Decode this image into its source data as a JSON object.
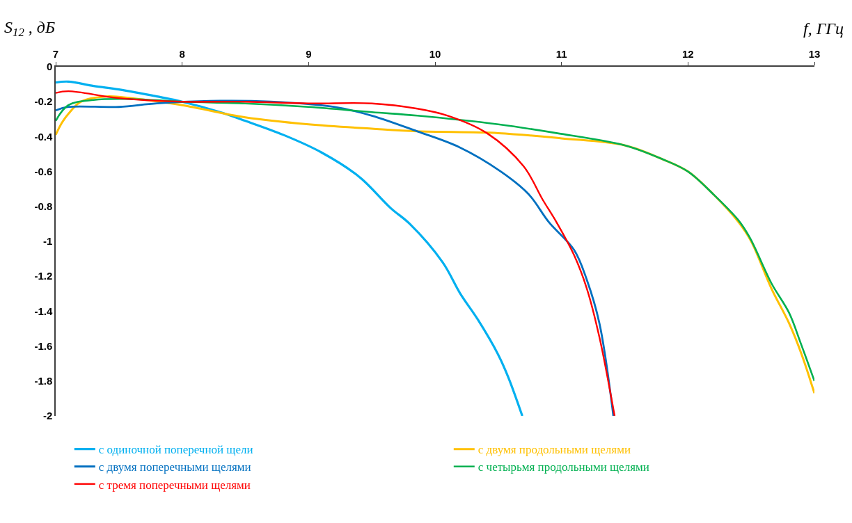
{
  "chart_data": {
    "type": "line",
    "xlabel": "f, ГГц",
    "ylabel": "S$_{12}$ , дБ",
    "xlim": [
      7,
      13
    ],
    "xticks": [
      7,
      8,
      9,
      10,
      11,
      12,
      13
    ],
    "ylim": [
      -2,
      0
    ],
    "yticks": [
      0,
      -0.2,
      -0.4,
      -0.6,
      -0.8,
      -1,
      -1.2,
      -1.4,
      -1.6,
      -1.8,
      -2
    ],
    "grid": false,
    "legend": "bottom",
    "marker": "none",
    "line_style": "solid",
    "series": [
      {
        "name": "с одиночной поперечной щели",
        "color": "#00b0f0",
        "x": [
          7,
          7.1,
          7.3,
          7.5,
          7.8,
          8,
          8.3,
          8.5,
          8.8,
          9.1,
          9.4,
          9.65,
          9.8,
          10.06,
          10.2,
          10.34,
          10.5,
          10.58,
          10.69
        ],
        "values": [
          -0.09,
          -0.085,
          -0.11,
          -0.13,
          -0.17,
          -0.2,
          -0.26,
          -0.31,
          -0.39,
          -0.49,
          -0.63,
          -0.81,
          -0.9,
          -1.12,
          -1.3,
          -1.45,
          -1.65,
          -1.78,
          -2
        ]
      },
      {
        "name": "с двумя продольными щелями",
        "color": "#ffc000",
        "x": [
          7,
          7.05,
          7.1,
          7.2,
          7.4,
          7.6,
          8,
          8.5,
          9,
          9.5,
          9.86,
          10.5,
          11,
          11.5,
          11.8,
          12,
          12.2,
          12.4,
          12.5,
          12.66,
          12.8,
          12.9,
          13
        ],
        "values": [
          -0.39,
          -0.32,
          -0.27,
          -0.2,
          -0.17,
          -0.18,
          -0.22,
          -0.29,
          -0.33,
          -0.355,
          -0.37,
          -0.38,
          -0.41,
          -0.45,
          -0.53,
          -0.6,
          -0.73,
          -0.89,
          -1,
          -1.27,
          -1.47,
          -1.65,
          -1.87
        ]
      },
      {
        "name": "с двумя поперечными щелями",
        "color": "#0070c0",
        "x": [
          7,
          7.1,
          7.5,
          7.8,
          8.3,
          8.7,
          9.2,
          9.5,
          9.86,
          10.19,
          10.52,
          10.74,
          10.9,
          11.1,
          11.2,
          11.3,
          11.41
        ],
        "values": [
          -0.25,
          -0.23,
          -0.23,
          -0.21,
          -0.195,
          -0.2,
          -0.23,
          -0.28,
          -0.37,
          -0.46,
          -0.6,
          -0.73,
          -0.89,
          -1.05,
          -1.22,
          -1.47,
          -2
        ]
      },
      {
        "name": "с четырьмя продольными щелями",
        "color": "#00b050",
        "x": [
          7,
          7.1,
          7.3,
          7.6,
          8,
          8.5,
          9,
          9.5,
          9.86,
          10.5,
          10.96,
          11.5,
          11.8,
          12,
          12.2,
          12.4,
          12.49,
          12.66,
          12.8,
          12.89,
          13
        ],
        "values": [
          -0.31,
          -0.22,
          -0.19,
          -0.185,
          -0.2,
          -0.21,
          -0.23,
          -0.26,
          -0.28,
          -0.33,
          -0.38,
          -0.45,
          -0.53,
          -0.6,
          -0.73,
          -0.88,
          -0.98,
          -1.24,
          -1.41,
          -1.58,
          -1.8
        ]
      },
      {
        "name": "с тремя поперечными щелями",
        "color": "#ff0000",
        "x": [
          7,
          7.1,
          7.5,
          8,
          8.5,
          9,
          9.5,
          9.86,
          10.1,
          10.41,
          10.7,
          10.85,
          10.96,
          11.1,
          11.2,
          11.3,
          11.42
        ],
        "values": [
          -0.15,
          -0.14,
          -0.18,
          -0.2,
          -0.2,
          -0.21,
          -0.21,
          -0.24,
          -0.28,
          -0.38,
          -0.57,
          -0.76,
          -0.89,
          -1.08,
          -1.27,
          -1.55,
          -2
        ]
      }
    ]
  }
}
